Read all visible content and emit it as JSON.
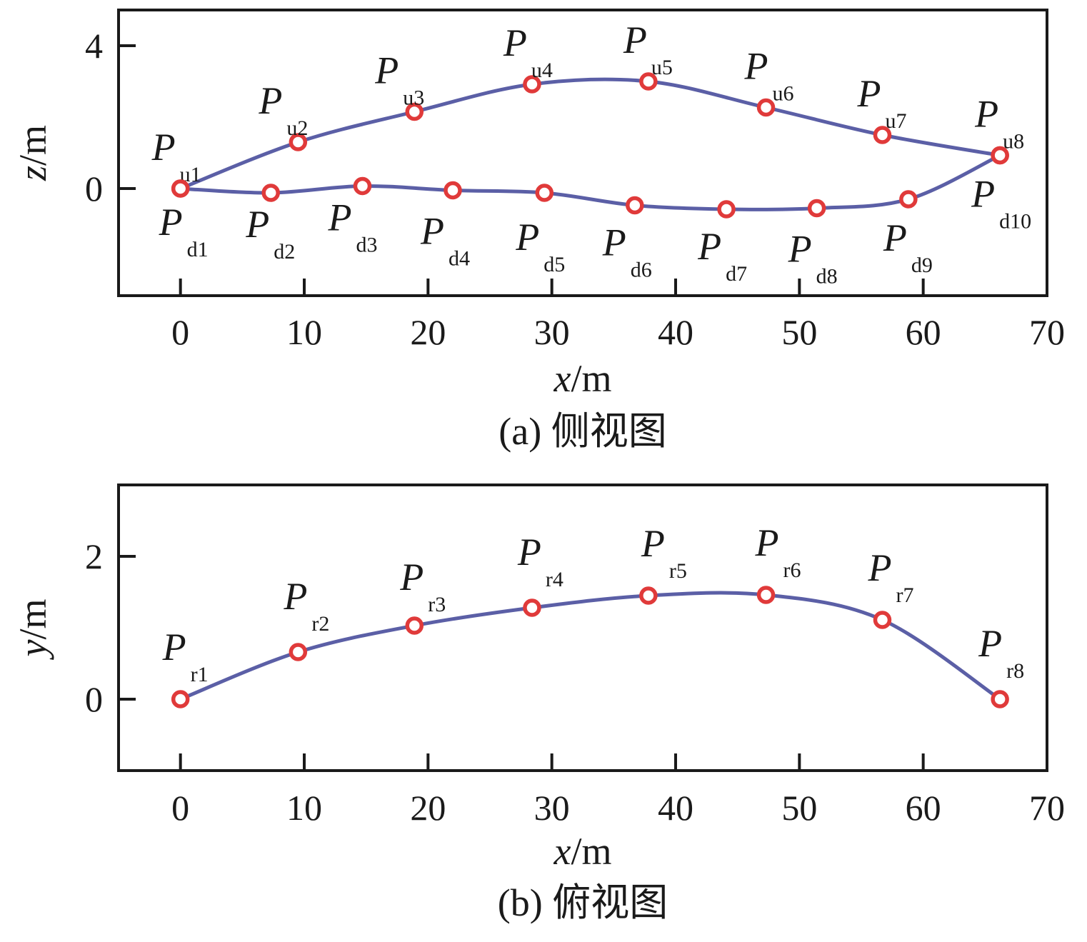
{
  "chart_data": [
    {
      "type": "line",
      "caption": "(a) 侧视图",
      "xlabel": "x/m",
      "ylabel": "z/m",
      "xlim": [
        -5,
        70
      ],
      "ylim": [
        -3,
        5
      ],
      "xticks": [
        0,
        10,
        20,
        30,
        40,
        50,
        60,
        70
      ],
      "yticks": [
        0,
        4
      ],
      "grid": false,
      "series": [
        {
          "points": [
            {
              "label": "P",
              "sub": "u1",
              "x": 0,
              "y": 0
            },
            {
              "label": "P",
              "sub": "u2",
              "x": 9.5,
              "y": 1.3
            },
            {
              "label": "P",
              "sub": "u3",
              "x": 18.9,
              "y": 2.15
            },
            {
              "label": "P",
              "sub": "u4",
              "x": 28.4,
              "y": 2.92
            },
            {
              "label": "P",
              "sub": "u5",
              "x": 37.8,
              "y": 3.0
            },
            {
              "label": "P",
              "sub": "u6",
              "x": 47.3,
              "y": 2.27
            },
            {
              "label": "P",
              "sub": "u7",
              "x": 56.7,
              "y": 1.5
            },
            {
              "label": "P",
              "sub": "u8",
              "x": 66.2,
              "y": 0.93
            }
          ]
        },
        {
          "points": [
            {
              "label": "P",
              "sub": "d1",
              "x": 0,
              "y": 0
            },
            {
              "label": "P",
              "sub": "d2",
              "x": 7.3,
              "y": -0.12
            },
            {
              "label": "P",
              "sub": "d3",
              "x": 14.7,
              "y": 0.07
            },
            {
              "label": "P",
              "sub": "d4",
              "x": 22.0,
              "y": -0.05
            },
            {
              "label": "P",
              "sub": "d5",
              "x": 29.4,
              "y": -0.12
            },
            {
              "label": "P",
              "sub": "d6",
              "x": 36.7,
              "y": -0.47
            },
            {
              "label": "P",
              "sub": "d7",
              "x": 44.1,
              "y": -0.58
            },
            {
              "label": "P",
              "sub": "d8",
              "x": 51.4,
              "y": -0.55
            },
            {
              "label": "P",
              "sub": "d9",
              "x": 58.8,
              "y": -0.3
            },
            {
              "label": "P",
              "sub": "d10",
              "x": 66.2,
              "y": 0.93
            }
          ]
        }
      ]
    },
    {
      "type": "line",
      "caption": "(b) 俯视图",
      "xlabel": "x/m",
      "ylabel": "y/m",
      "xlim": [
        -5,
        70
      ],
      "ylim": [
        -1,
        3
      ],
      "xticks": [
        0,
        10,
        20,
        30,
        40,
        50,
        60,
        70
      ],
      "yticks": [
        0,
        2
      ],
      "grid": false,
      "series": [
        {
          "points": [
            {
              "label": "P",
              "sub": "r1",
              "x": 0,
              "y": 0
            },
            {
              "label": "P",
              "sub": "r2",
              "x": 9.5,
              "y": 0.66
            },
            {
              "label": "P",
              "sub": "r3",
              "x": 18.9,
              "y": 1.03
            },
            {
              "label": "P",
              "sub": "r4",
              "x": 28.4,
              "y": 1.28
            },
            {
              "label": "P",
              "sub": "r5",
              "x": 37.8,
              "y": 1.45
            },
            {
              "label": "P",
              "sub": "r6",
              "x": 47.3,
              "y": 1.46
            },
            {
              "label": "P",
              "sub": "r7",
              "x": 56.7,
              "y": 1.11
            },
            {
              "label": "P",
              "sub": "r8",
              "x": 66.2,
              "y": 0
            }
          ]
        }
      ]
    }
  ],
  "style": {
    "curve_color": "#5b5fa6",
    "marker_color": "#e03a3a",
    "frame_color": "#1a1a1a"
  }
}
